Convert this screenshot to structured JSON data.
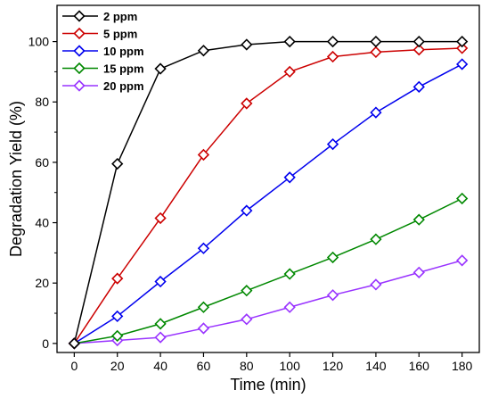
{
  "chart_data": {
    "type": "line",
    "title": "",
    "xlabel": "Time (min)",
    "ylabel": "Degradation Yield (%)",
    "xlim": [
      -8,
      188
    ],
    "ylim": [
      -3,
      112
    ],
    "xticks": [
      0,
      20,
      40,
      60,
      80,
      100,
      120,
      140,
      160,
      180
    ],
    "yticks": [
      0,
      20,
      40,
      60,
      80,
      100
    ],
    "grid": false,
    "legend_position": "top-left",
    "x": [
      0,
      20,
      40,
      60,
      80,
      100,
      120,
      140,
      160,
      180
    ],
    "series": [
      {
        "name": "2 ppm",
        "color": "#000000",
        "marker": "diamond-open",
        "values": [
          0,
          59.5,
          91,
          97,
          99,
          100,
          100,
          100,
          100,
          100
        ]
      },
      {
        "name": "5 ppm",
        "color": "#cc0000",
        "marker": "diamond-open",
        "values": [
          0,
          21.5,
          41.5,
          62.5,
          79.5,
          90,
          95,
          96.5,
          97.3,
          97.8
        ]
      },
      {
        "name": "10 ppm",
        "color": "#0000ee",
        "marker": "diamond-open",
        "values": [
          0,
          9,
          20.5,
          31.5,
          44,
          55,
          66,
          76.5,
          85,
          92.5
        ]
      },
      {
        "name": "15 ppm",
        "color": "#008800",
        "marker": "diamond-open",
        "values": [
          0,
          2.5,
          6.5,
          12,
          17.5,
          23,
          28.5,
          34.5,
          41,
          48
        ]
      },
      {
        "name": "20 ppm",
        "color": "#9933ff",
        "marker": "diamond-open",
        "values": [
          0,
          1,
          2,
          5,
          8,
          12,
          16,
          19.5,
          23.5,
          27.5
        ]
      }
    ]
  }
}
